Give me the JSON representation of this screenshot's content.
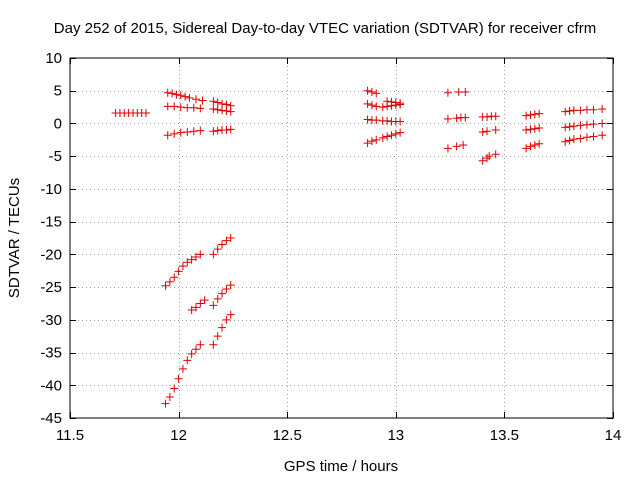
{
  "chart_data": {
    "type": "scatter",
    "title": "Day 252 of 2015, Sidereal Day-to-day VTEC variation (SDTVAR) for receiver cfrm",
    "xlabel": "GPS time / hours",
    "ylabel": "SDTVAR / TECUs",
    "xlim": [
      11.5,
      14
    ],
    "ylim": [
      -45,
      10
    ],
    "xticks": [
      11.5,
      12,
      12.5,
      13,
      13.5,
      14
    ],
    "xtick_labels": [
      "11.5",
      "12",
      "12.5",
      "13",
      "13.5",
      "14"
    ],
    "yticks": [
      10,
      5,
      0,
      -5,
      -10,
      -15,
      -20,
      -25,
      -30,
      -35,
      -40,
      -45
    ],
    "ytick_labels": [
      "10",
      "5",
      "0",
      "-5",
      "-10",
      "-15",
      "-20",
      "-25",
      "-30",
      "-35",
      "-40",
      "-45"
    ],
    "grid": true,
    "marker": "+",
    "color": "#e00000",
    "series": [
      {
        "name": "g1",
        "x": [
          11.71,
          11.73,
          11.75,
          11.77,
          11.79,
          11.81,
          11.83,
          11.85
        ],
        "y": [
          1.6,
          1.6,
          1.6,
          1.6,
          1.6,
          1.6,
          1.6,
          1.6
        ]
      },
      {
        "name": "g2",
        "x": [
          11.95,
          11.97,
          11.99,
          12.01,
          12.03,
          12.05,
          12.08,
          12.11
        ],
        "y": [
          4.7,
          4.6,
          4.4,
          4.3,
          4.1,
          3.9,
          3.7,
          3.5
        ]
      },
      {
        "name": "g3",
        "x": [
          11.95,
          11.98,
          12.01,
          12.04,
          12.07,
          12.1
        ],
        "y": [
          2.6,
          2.6,
          2.5,
          2.4,
          2.4,
          2.3
        ]
      },
      {
        "name": "g4",
        "x": [
          11.95,
          11.98,
          12.01,
          12.04,
          12.07,
          12.1
        ],
        "y": [
          -1.8,
          -1.6,
          -1.4,
          -1.3,
          -1.2,
          -1.1
        ]
      },
      {
        "name": "g5",
        "x": [
          12.16,
          12.18,
          12.2,
          12.22,
          12.24
        ],
        "y": [
          3.4,
          3.2,
          3.0,
          2.9,
          2.7
        ]
      },
      {
        "name": "g6",
        "x": [
          12.16,
          12.18,
          12.2,
          12.22,
          12.24
        ],
        "y": [
          2.2,
          2.1,
          2.0,
          1.9,
          1.8
        ]
      },
      {
        "name": "g7",
        "x": [
          12.16,
          12.18,
          12.2,
          12.22,
          12.24
        ],
        "y": [
          -1.2,
          -1.1,
          -1.0,
          -1.0,
          -0.9
        ]
      },
      {
        "name": "g8",
        "x": [
          11.94,
          11.96,
          11.98,
          12.0,
          12.02,
          12.04,
          12.06,
          12.08,
          12.1
        ],
        "y": [
          -24.8,
          -24.2,
          -23.5,
          -22.6,
          -21.8,
          -21.2,
          -20.8,
          -20.4,
          -20.0
        ]
      },
      {
        "name": "g9",
        "x": [
          12.16,
          12.18,
          12.2,
          12.22,
          12.24
        ],
        "y": [
          -20.0,
          -19.2,
          -18.5,
          -17.9,
          -17.5
        ]
      },
      {
        "name": "g10",
        "x": [
          12.06,
          12.08,
          12.1,
          12.12
        ],
        "y": [
          -28.5,
          -28.1,
          -27.5,
          -27.0
        ]
      },
      {
        "name": "g11",
        "x": [
          12.16,
          12.18,
          12.2,
          12.22,
          12.24
        ],
        "y": [
          -27.8,
          -26.8,
          -26.0,
          -25.3,
          -24.7
        ]
      },
      {
        "name": "g12",
        "x": [
          11.94,
          11.96,
          11.98,
          12.0,
          12.02,
          12.04,
          12.06,
          12.08,
          12.1
        ],
        "y": [
          -42.8,
          -41.8,
          -40.5,
          -39.0,
          -37.5,
          -36.2,
          -35.2,
          -34.5,
          -33.8
        ]
      },
      {
        "name": "g13",
        "x": [
          12.16,
          12.18,
          12.2,
          12.22,
          12.24
        ],
        "y": [
          -33.8,
          -32.5,
          -31.2,
          -30.0,
          -29.2
        ]
      },
      {
        "name": "g14",
        "x": [
          12.87,
          12.89,
          12.91
        ],
        "y": [
          5.0,
          4.8,
          4.6
        ]
      },
      {
        "name": "g15",
        "x": [
          12.87,
          12.89,
          12.91,
          12.94,
          12.96,
          12.98,
          13.0,
          13.02
        ],
        "y": [
          3.0,
          2.8,
          2.6,
          2.5,
          2.6,
          2.7,
          2.8,
          2.9
        ]
      },
      {
        "name": "g16",
        "x": [
          12.96,
          12.98,
          13.0,
          13.02
        ],
        "y": [
          3.4,
          3.3,
          3.2,
          3.1
        ]
      },
      {
        "name": "g17",
        "x": [
          12.87,
          12.89,
          12.91,
          12.94,
          12.96,
          12.98,
          13.0,
          13.02
        ],
        "y": [
          0.6,
          0.5,
          0.5,
          0.4,
          0.4,
          0.3,
          0.3,
          0.3
        ]
      },
      {
        "name": "g18",
        "x": [
          12.87,
          12.89,
          12.91,
          12.94,
          12.96,
          12.98,
          13.0,
          13.02
        ],
        "y": [
          -3.0,
          -2.7,
          -2.5,
          -2.2,
          -2.0,
          -1.8,
          -1.6,
          -1.4
        ]
      },
      {
        "name": "g19",
        "x": [
          13.24,
          13.29,
          13.32
        ],
        "y": [
          4.7,
          4.8,
          4.8
        ]
      },
      {
        "name": "g20",
        "x": [
          13.24,
          13.28,
          13.3,
          13.32
        ],
        "y": [
          0.7,
          0.8,
          0.9,
          0.9
        ]
      },
      {
        "name": "g21",
        "x": [
          13.24,
          13.28,
          13.31
        ],
        "y": [
          -3.8,
          -3.5,
          -3.3
        ]
      },
      {
        "name": "g22",
        "x": [
          13.4,
          13.42,
          13.44,
          13.46
        ],
        "y": [
          1.0,
          1.0,
          1.1,
          1.1
        ]
      },
      {
        "name": "g23",
        "x": [
          13.4,
          13.42,
          13.46
        ],
        "y": [
          -1.3,
          -1.2,
          -1.0
        ]
      },
      {
        "name": "g24",
        "x": [
          13.4,
          13.42,
          13.43,
          13.46
        ],
        "y": [
          -5.7,
          -5.3,
          -5.0,
          -4.7
        ]
      },
      {
        "name": "g25",
        "x": [
          13.6,
          13.62,
          13.64,
          13.66
        ],
        "y": [
          1.2,
          1.3,
          1.4,
          1.5
        ]
      },
      {
        "name": "g26",
        "x": [
          13.6,
          13.62,
          13.64,
          13.66
        ],
        "y": [
          -1.0,
          -0.9,
          -0.8,
          -0.7
        ]
      },
      {
        "name": "g27",
        "x": [
          13.6,
          13.62,
          13.64,
          13.66
        ],
        "y": [
          -3.8,
          -3.5,
          -3.3,
          -3.1
        ]
      },
      {
        "name": "g28",
        "x": [
          13.78,
          13.8,
          13.82,
          13.85,
          13.88,
          13.91,
          13.95
        ],
        "y": [
          1.8,
          1.9,
          2.0,
          2.0,
          2.1,
          2.1,
          2.2
        ]
      },
      {
        "name": "g29",
        "x": [
          13.78,
          13.8,
          13.82,
          13.85,
          13.88,
          13.91,
          13.95
        ],
        "y": [
          -0.6,
          -0.5,
          -0.4,
          -0.3,
          -0.2,
          -0.1,
          0.0
        ]
      },
      {
        "name": "g30",
        "x": [
          13.78,
          13.8,
          13.82,
          13.85,
          13.88,
          13.91,
          13.95
        ],
        "y": [
          -2.8,
          -2.6,
          -2.4,
          -2.3,
          -2.1,
          -2.0,
          -1.8
        ]
      }
    ]
  }
}
